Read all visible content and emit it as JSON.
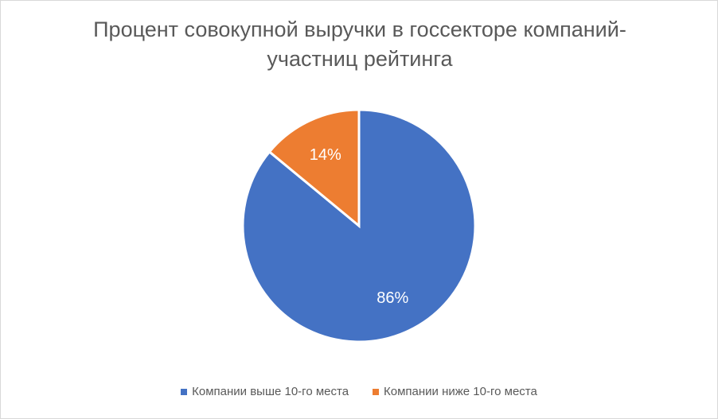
{
  "chart_data": {
    "type": "pie",
    "title_lines": [
      "Процент совокупной выручки в госсекторе компаний-",
      "участниц рейтинга"
    ],
    "categories": [
      "Компании выше 10-го места",
      "Компании ниже 10-го места"
    ],
    "values": [
      86,
      14
    ],
    "labels": [
      "86%",
      "14%"
    ],
    "colors": [
      "#4472C4",
      "#ED7D31"
    ],
    "legend_position": "bottom"
  }
}
